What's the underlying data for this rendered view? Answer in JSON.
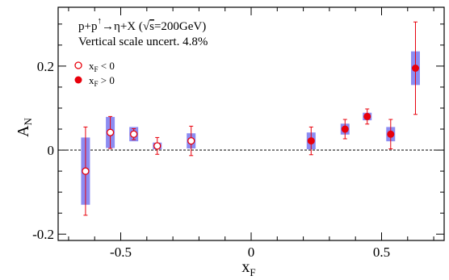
{
  "chart_data": {
    "type": "scatter",
    "annotations": {
      "reaction_prefix": "p+p",
      "reaction_suffix": "→η+X (",
      "arrow": "↑",
      "sqrt_sign": "√",
      "sqrt_content": "s",
      "energy": "=200GeV)",
      "scale_note": "Vertical scale uncert. 4.8%"
    },
    "xlabel": "x",
    "xlabel_sub": "F",
    "ylabel": "A",
    "ylabel_sub": "N",
    "xlim": [
      -0.74,
      0.74
    ],
    "ylim": [
      -0.215,
      0.34
    ],
    "x_tick_values": [
      -0.5,
      0,
      0.5
    ],
    "x_tick_labels": [
      "-0.5",
      "0",
      "0.5"
    ],
    "y_tick_values": [
      -0.2,
      0,
      0.2
    ],
    "y_tick_labels": [
      "-0.2",
      "0",
      "0.2"
    ],
    "zero_line": true,
    "legend": {
      "placement": "upper-left",
      "entries": [
        {
          "marker": "open-circle",
          "label_prefix": "x",
          "label_sub": "F",
          "label_suffix": " < 0"
        },
        {
          "marker": "filled-circle",
          "label_prefix": "x",
          "label_sub": "F",
          "label_suffix": " > 0"
        }
      ]
    },
    "colors": {
      "marker": "#e8000b",
      "error_bar": "#e8000b",
      "systematic_box": "#8c8cf2",
      "zero_line": "#000000"
    },
    "series": [
      {
        "marker": "open-circle",
        "points": [
          {
            "x": -0.635,
            "y": -0.05,
            "err": 0.105,
            "sys": 0.08
          },
          {
            "x": -0.54,
            "y": 0.042,
            "err": 0.038,
            "sys": 0.037
          },
          {
            "x": -0.45,
            "y": 0.038,
            "err": 0.013,
            "sys": 0.017
          },
          {
            "x": -0.36,
            "y": 0.01,
            "err": 0.02,
            "sys": 0.008
          },
          {
            "x": -0.23,
            "y": 0.022,
            "err": 0.035,
            "sys": 0.018
          }
        ]
      },
      {
        "marker": "filled-circle",
        "points": [
          {
            "x": 0.23,
            "y": 0.022,
            "err": 0.033,
            "sys": 0.02
          },
          {
            "x": 0.36,
            "y": 0.05,
            "err": 0.023,
            "sys": 0.013
          },
          {
            "x": 0.445,
            "y": 0.08,
            "err": 0.018,
            "sys": 0.009
          },
          {
            "x": 0.535,
            "y": 0.038,
            "err": 0.035,
            "sys": 0.017
          },
          {
            "x": 0.63,
            "y": 0.195,
            "err": 0.11,
            "sys": 0.04
          }
        ]
      }
    ]
  }
}
